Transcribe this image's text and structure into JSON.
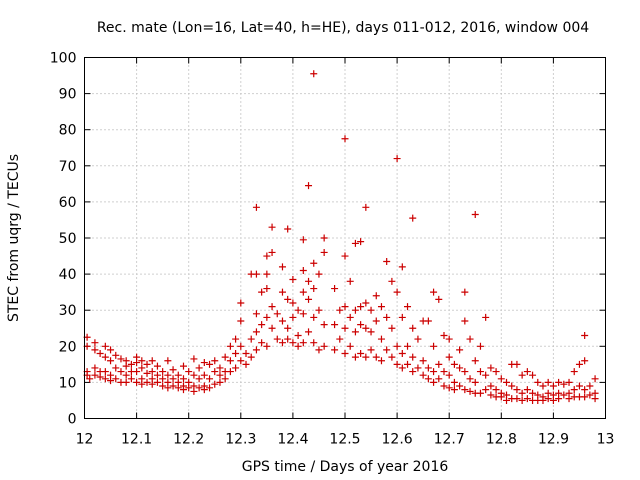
{
  "chart_data": {
    "type": "scatter",
    "title": "Rec. mate (Lon=16, Lat=40, h=HE), days 011-012, 2016, window 004",
    "xlabel": "GPS time / Days of year 2016",
    "ylabel": "STEC from uqrg / TECUs",
    "xlim": [
      12,
      13
    ],
    "ylim": [
      0,
      100
    ],
    "x_ticks": [
      "12",
      "12.1",
      "12.2",
      "12.3",
      "12.4",
      "12.5",
      "12.6",
      "12.7",
      "12.8",
      "12.9",
      "13"
    ],
    "y_ticks": [
      "0",
      "10",
      "20",
      "30",
      "40",
      "50",
      "60",
      "70",
      "80",
      "90",
      "100"
    ],
    "grid": true,
    "marker": "+",
    "color": "#cc0000",
    "points": [
      [
        12.005,
        20
      ],
      [
        12.005,
        22.5
      ],
      [
        12.005,
        13
      ],
      [
        12.005,
        12
      ],
      [
        12.01,
        11
      ],
      [
        12.02,
        21
      ],
      [
        12.02,
        19
      ],
      [
        12.02,
        14
      ],
      [
        12.02,
        12
      ],
      [
        12.03,
        18
      ],
      [
        12.03,
        13
      ],
      [
        12.03,
        11.5
      ],
      [
        12.04,
        20
      ],
      [
        12.04,
        17
      ],
      [
        12.04,
        13
      ],
      [
        12.04,
        11
      ],
      [
        12.05,
        19
      ],
      [
        12.05,
        16
      ],
      [
        12.05,
        12
      ],
      [
        12.05,
        10.5
      ],
      [
        12.06,
        17.5
      ],
      [
        12.06,
        14
      ],
      [
        12.06,
        11
      ],
      [
        12.07,
        16.5
      ],
      [
        12.07,
        13
      ],
      [
        12.07,
        10
      ],
      [
        12.08,
        16
      ],
      [
        12.08,
        14.5
      ],
      [
        12.08,
        12
      ],
      [
        12.08,
        10
      ],
      [
        12.09,
        15
      ],
      [
        12.09,
        13
      ],
      [
        12.09,
        11
      ],
      [
        12.1,
        17
      ],
      [
        12.1,
        15.5
      ],
      [
        12.1,
        13
      ],
      [
        12.1,
        10
      ],
      [
        12.11,
        16
      ],
      [
        12.11,
        14
      ],
      [
        12.11,
        11
      ],
      [
        12.11,
        9.5
      ],
      [
        12.12,
        15
      ],
      [
        12.12,
        12.5
      ],
      [
        12.12,
        10
      ],
      [
        12.13,
        16
      ],
      [
        12.13,
        13
      ],
      [
        12.13,
        11
      ],
      [
        12.13,
        9.5
      ],
      [
        12.14,
        14.5
      ],
      [
        12.14,
        12
      ],
      [
        12.14,
        10
      ],
      [
        12.15,
        13
      ],
      [
        12.15,
        11
      ],
      [
        12.15,
        9
      ],
      [
        12.16,
        16
      ],
      [
        12.16,
        12
      ],
      [
        12.16,
        10
      ],
      [
        12.16,
        8.5
      ],
      [
        12.17,
        13.5
      ],
      [
        12.17,
        11
      ],
      [
        12.17,
        9
      ],
      [
        12.18,
        12
      ],
      [
        12.18,
        10
      ],
      [
        12.18,
        8.5
      ],
      [
        12.19,
        14.5
      ],
      [
        12.19,
        11
      ],
      [
        12.19,
        9
      ],
      [
        12.19,
        8
      ],
      [
        12.2,
        13
      ],
      [
        12.2,
        10
      ],
      [
        12.2,
        8.5
      ],
      [
        12.21,
        16.5
      ],
      [
        12.21,
        12
      ],
      [
        12.21,
        9
      ],
      [
        12.21,
        7.5
      ],
      [
        12.22,
        14
      ],
      [
        12.22,
        11
      ],
      [
        12.22,
        8.5
      ],
      [
        12.23,
        15.5
      ],
      [
        12.23,
        12
      ],
      [
        12.23,
        9
      ],
      [
        12.23,
        8
      ],
      [
        12.24,
        15
      ],
      [
        12.24,
        11
      ],
      [
        12.24,
        8.5
      ],
      [
        12.25,
        16
      ],
      [
        12.25,
        13
      ],
      [
        12.25,
        9.5
      ],
      [
        12.26,
        14
      ],
      [
        12.26,
        12
      ],
      [
        12.26,
        10
      ],
      [
        12.27,
        17
      ],
      [
        12.27,
        13
      ],
      [
        12.27,
        11
      ],
      [
        12.28,
        20
      ],
      [
        12.28,
        16
      ],
      [
        12.28,
        13
      ],
      [
        12.29,
        22
      ],
      [
        12.29,
        18
      ],
      [
        12.29,
        14
      ],
      [
        12.3,
        32
      ],
      [
        12.3,
        27
      ],
      [
        12.3,
        20
      ],
      [
        12.3,
        16
      ],
      [
        12.31,
        18
      ],
      [
        12.31,
        15
      ],
      [
        12.32,
        40
      ],
      [
        12.32,
        22
      ],
      [
        12.32,
        17
      ],
      [
        12.33,
        58.5
      ],
      [
        12.33,
        40
      ],
      [
        12.33,
        29
      ],
      [
        12.33,
        24
      ],
      [
        12.33,
        19
      ],
      [
        12.34,
        35
      ],
      [
        12.34,
        26
      ],
      [
        12.34,
        21
      ],
      [
        12.35,
        45
      ],
      [
        12.35,
        40
      ],
      [
        12.35,
        36
      ],
      [
        12.35,
        28
      ],
      [
        12.35,
        20
      ],
      [
        12.36,
        53
      ],
      [
        12.36,
        46
      ],
      [
        12.36,
        31
      ],
      [
        12.36,
        25
      ],
      [
        12.37,
        29
      ],
      [
        12.37,
        22
      ],
      [
        12.38,
        42
      ],
      [
        12.38,
        35
      ],
      [
        12.38,
        27
      ],
      [
        12.38,
        21
      ],
      [
        12.39,
        52.5
      ],
      [
        12.39,
        33
      ],
      [
        12.39,
        25
      ],
      [
        12.39,
        22
      ],
      [
        12.4,
        38.5
      ],
      [
        12.4,
        32
      ],
      [
        12.4,
        28
      ],
      [
        12.4,
        21
      ],
      [
        12.41,
        30
      ],
      [
        12.41,
        23
      ],
      [
        12.41,
        20
      ],
      [
        12.42,
        49.5
      ],
      [
        12.42,
        41
      ],
      [
        12.42,
        35
      ],
      [
        12.42,
        29
      ],
      [
        12.42,
        21
      ],
      [
        12.43,
        64.5
      ],
      [
        12.43,
        38
      ],
      [
        12.43,
        33
      ],
      [
        12.43,
        24
      ],
      [
        12.44,
        95.5
      ],
      [
        12.44,
        43
      ],
      [
        12.44,
        36
      ],
      [
        12.44,
        28
      ],
      [
        12.44,
        21
      ],
      [
        12.45,
        40
      ],
      [
        12.45,
        30
      ],
      [
        12.45,
        19
      ],
      [
        12.46,
        50
      ],
      [
        12.46,
        46
      ],
      [
        12.46,
        26
      ],
      [
        12.46,
        20
      ],
      [
        12.48,
        36
      ],
      [
        12.48,
        26
      ],
      [
        12.48,
        19
      ],
      [
        12.49,
        30
      ],
      [
        12.49,
        22
      ],
      [
        12.5,
        77.5
      ],
      [
        12.5,
        45
      ],
      [
        12.5,
        31
      ],
      [
        12.5,
        25
      ],
      [
        12.5,
        18
      ],
      [
        12.51,
        38
      ],
      [
        12.51,
        28
      ],
      [
        12.51,
        20
      ],
      [
        12.52,
        48.5
      ],
      [
        12.52,
        30
      ],
      [
        12.52,
        24
      ],
      [
        12.52,
        17
      ],
      [
        12.53,
        49
      ],
      [
        12.53,
        31
      ],
      [
        12.53,
        26
      ],
      [
        12.53,
        18
      ],
      [
        12.54,
        58.5
      ],
      [
        12.54,
        32
      ],
      [
        12.54,
        25
      ],
      [
        12.54,
        17
      ],
      [
        12.55,
        30
      ],
      [
        12.55,
        24
      ],
      [
        12.55,
        19
      ],
      [
        12.56,
        34
      ],
      [
        12.56,
        27
      ],
      [
        12.56,
        17
      ],
      [
        12.57,
        31
      ],
      [
        12.57,
        22
      ],
      [
        12.57,
        16
      ],
      [
        12.58,
        43.5
      ],
      [
        12.58,
        28
      ],
      [
        12.58,
        19
      ],
      [
        12.59,
        38
      ],
      [
        12.59,
        25
      ],
      [
        12.59,
        17
      ],
      [
        12.6,
        72
      ],
      [
        12.6,
        35
      ],
      [
        12.6,
        20
      ],
      [
        12.6,
        15
      ],
      [
        12.61,
        42
      ],
      [
        12.61,
        28
      ],
      [
        12.61,
        18
      ],
      [
        12.61,
        14
      ],
      [
        12.62,
        31
      ],
      [
        12.62,
        20
      ],
      [
        12.62,
        15
      ],
      [
        12.63,
        55.5
      ],
      [
        12.63,
        25
      ],
      [
        12.63,
        17
      ],
      [
        12.63,
        13
      ],
      [
        12.64,
        22
      ],
      [
        12.64,
        14
      ],
      [
        12.65,
        27
      ],
      [
        12.65,
        16
      ],
      [
        12.65,
        12
      ],
      [
        12.66,
        27
      ],
      [
        12.66,
        14
      ],
      [
        12.66,
        11
      ],
      [
        12.67,
        35
      ],
      [
        12.67,
        20
      ],
      [
        12.67,
        13
      ],
      [
        12.67,
        10
      ],
      [
        12.68,
        33
      ],
      [
        12.68,
        15
      ],
      [
        12.68,
        11
      ],
      [
        12.69,
        23
      ],
      [
        12.69,
        13
      ],
      [
        12.69,
        9
      ],
      [
        12.7,
        22
      ],
      [
        12.7,
        17
      ],
      [
        12.7,
        12
      ],
      [
        12.7,
        8.5
      ],
      [
        12.71,
        15
      ],
      [
        12.71,
        10
      ],
      [
        12.71,
        8
      ],
      [
        12.72,
        19
      ],
      [
        12.72,
        14
      ],
      [
        12.72,
        9
      ],
      [
        12.73,
        35
      ],
      [
        12.73,
        27
      ],
      [
        12.73,
        13
      ],
      [
        12.73,
        8
      ],
      [
        12.74,
        22
      ],
      [
        12.74,
        11
      ],
      [
        12.74,
        7.5
      ],
      [
        12.75,
        56.5
      ],
      [
        12.75,
        16
      ],
      [
        12.75,
        10
      ],
      [
        12.75,
        7
      ],
      [
        12.76,
        20
      ],
      [
        12.76,
        13
      ],
      [
        12.76,
        7
      ],
      [
        12.77,
        28
      ],
      [
        12.77,
        12
      ],
      [
        12.77,
        8
      ],
      [
        12.78,
        14
      ],
      [
        12.78,
        9
      ],
      [
        12.78,
        6.5
      ],
      [
        12.79,
        13
      ],
      [
        12.79,
        8
      ],
      [
        12.79,
        6
      ],
      [
        12.8,
        11
      ],
      [
        12.8,
        7
      ],
      [
        12.8,
        6
      ],
      [
        12.81,
        10
      ],
      [
        12.81,
        6.5
      ],
      [
        12.81,
        5
      ],
      [
        12.82,
        15
      ],
      [
        12.82,
        9
      ],
      [
        12.82,
        5.5
      ],
      [
        12.83,
        15
      ],
      [
        12.83,
        8
      ],
      [
        12.83,
        5.5
      ],
      [
        12.84,
        12
      ],
      [
        12.84,
        7
      ],
      [
        12.84,
        5
      ],
      [
        12.85,
        13
      ],
      [
        12.85,
        8
      ],
      [
        12.85,
        5.5
      ],
      [
        12.86,
        12
      ],
      [
        12.86,
        7
      ],
      [
        12.86,
        5
      ],
      [
        12.87,
        10
      ],
      [
        12.87,
        6.5
      ],
      [
        12.87,
        5
      ],
      [
        12.88,
        9
      ],
      [
        12.88,
        6
      ],
      [
        12.88,
        5
      ],
      [
        12.89,
        10
      ],
      [
        12.89,
        7
      ],
      [
        12.89,
        5.5
      ],
      [
        12.9,
        9
      ],
      [
        12.9,
        6.5
      ],
      [
        12.9,
        5
      ],
      [
        12.91,
        10
      ],
      [
        12.91,
        7
      ],
      [
        12.91,
        5.5
      ],
      [
        12.92,
        9.5
      ],
      [
        12.92,
        6.5
      ],
      [
        12.93,
        10
      ],
      [
        12.93,
        7
      ],
      [
        12.93,
        5.5
      ],
      [
        12.94,
        13
      ],
      [
        12.94,
        8
      ],
      [
        12.94,
        6
      ],
      [
        12.95,
        15
      ],
      [
        12.95,
        9
      ],
      [
        12.95,
        6
      ],
      [
        12.96,
        23
      ],
      [
        12.96,
        16
      ],
      [
        12.96,
        8
      ],
      [
        12.96,
        6
      ],
      [
        12.97,
        9
      ],
      [
        12.97,
        6.5
      ],
      [
        12.98,
        11
      ],
      [
        12.98,
        7
      ],
      [
        12.98,
        5.5
      ]
    ]
  }
}
